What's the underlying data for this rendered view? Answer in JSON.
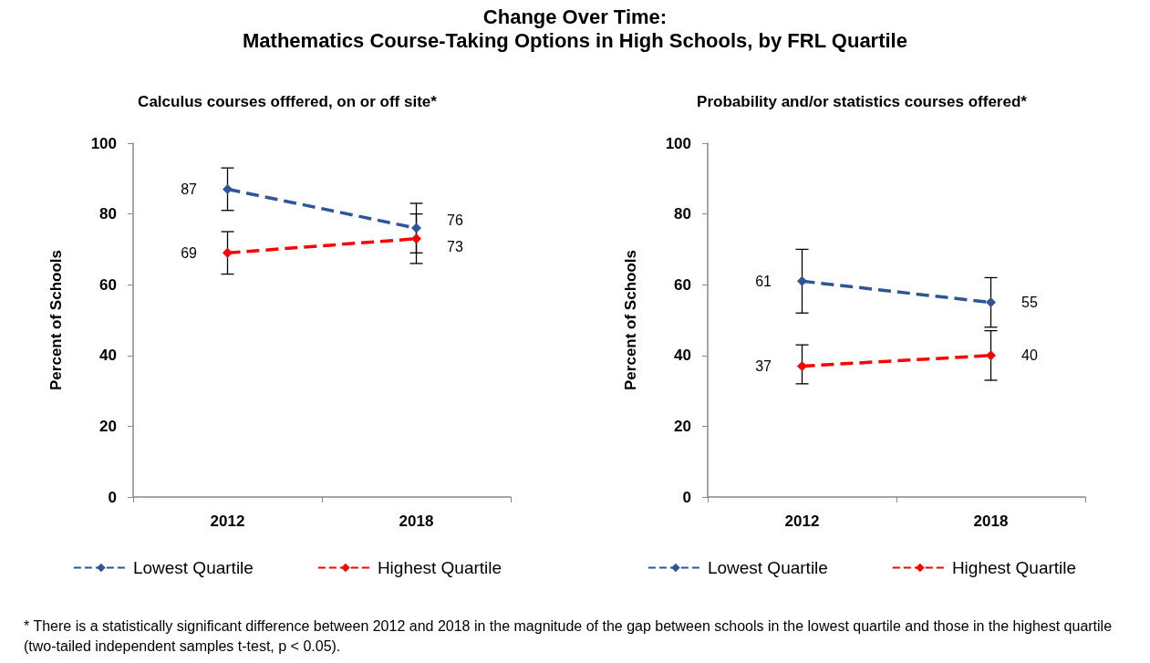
{
  "chart_data": [
    {
      "type": "line",
      "title": "Change Over Time:\nMathematics Course-Taking Options in High Schools, by FRL Quartile",
      "subtitle": "Calculus courses offfered, on or off site*",
      "ylabel": "Percent of Schools",
      "categories": [
        "2012",
        "2018"
      ],
      "ylim": [
        0,
        100
      ],
      "yticks": [
        0,
        20,
        40,
        60,
        80,
        100
      ],
      "grid": false,
      "legend": "bottom",
      "marker": "diamond",
      "line_style": "dashed",
      "data_labels": true,
      "series": [
        {
          "name": "Lowest Quartile",
          "color": "#2e5597",
          "values": [
            87,
            76
          ],
          "errors": [
            [
              81,
              93
            ],
            [
              69,
              83
            ]
          ]
        },
        {
          "name": "Highest Quartile",
          "color": "#ff0000",
          "values": [
            69,
            73
          ],
          "errors": [
            [
              63,
              75
            ],
            [
              66,
              80
            ]
          ]
        }
      ],
      "annotations": [
        "*   There is a statistically significant difference between 2012 and 2018 in the magnitude of the gap between schools in the lowest quartile and those in the highest quartile (two-tailed independent samples t-test, p < 0.05)."
      ]
    },
    {
      "type": "line",
      "title": "Probability and/or statistics courses offered*",
      "ylabel": "Percent of Schools",
      "categories": [
        "2012",
        "2018"
      ],
      "ylim": [
        0,
        100
      ],
      "yticks": [
        0,
        20,
        40,
        60,
        80,
        100
      ],
      "grid": false,
      "legend": "bottom",
      "marker": "diamond",
      "line_style": "dashed",
      "data_labels": true,
      "series": [
        {
          "name": "Lowest Quartile",
          "color": "#2e5597",
          "values": [
            61,
            55
          ],
          "errors": [
            [
              52,
              70
            ],
            [
              48,
              62
            ]
          ]
        },
        {
          "name": "Highest Quartile",
          "color": "#ff0000",
          "values": [
            37,
            40
          ],
          "errors": [
            [
              32,
              43
            ],
            [
              33,
              47
            ]
          ]
        }
      ]
    }
  ]
}
